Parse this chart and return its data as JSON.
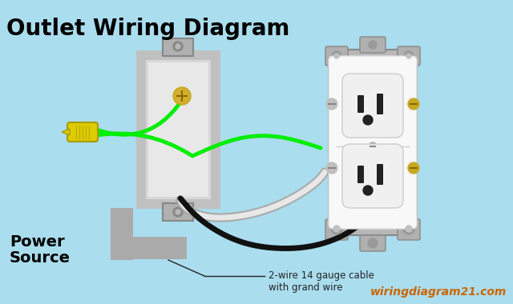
{
  "bg_color": "#aaddee",
  "title": "Outlet Wiring Diagram",
  "title_fontsize": 20,
  "title_color": "#000000",
  "wire_green_color": "#00ee00",
  "wire_black_color": "#111111",
  "wire_white_color": "#e0e0e0",
  "outlet_body_color": "#ffffff",
  "outlet_bracket_color": "#aaaaaa",
  "box_color": "#b0b0b0",
  "box_border_color": "#888888",
  "label_power_source": "Power\nSource",
  "label_cable": "2-wire 14 gauge cable\nwith grand wire",
  "watermark": "wiringdiagram21.com",
  "watermark_color": "#cc6600",
  "nut_color": "#ddcc00",
  "screw_color": "#c8a820"
}
